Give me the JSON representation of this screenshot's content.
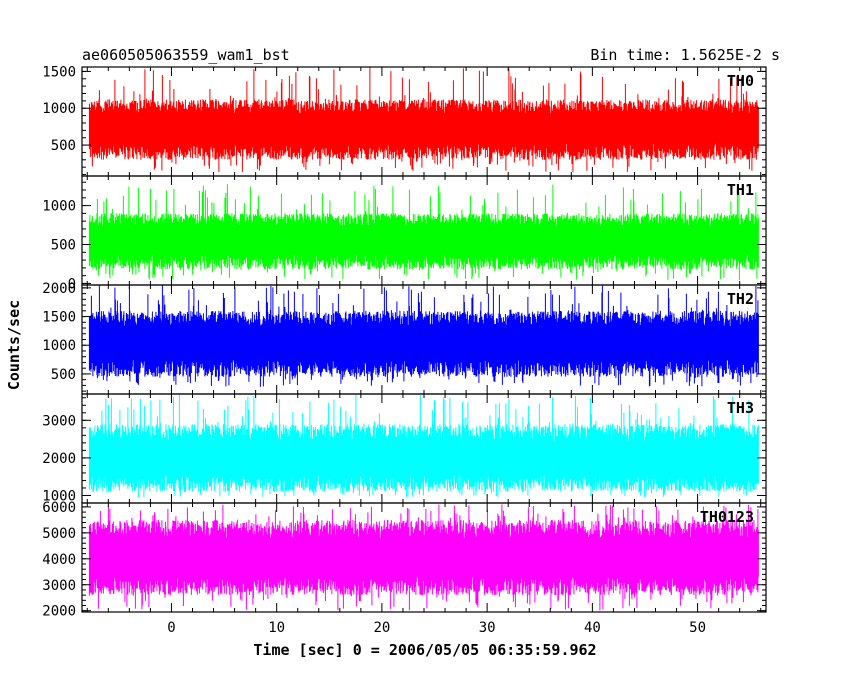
{
  "header": {
    "title": "ae060505063559_wam1_bst",
    "bin_time": "Bin time: 1.5625E-2 s"
  },
  "chart_data": {
    "type": "line",
    "subtype": "multi-panel light curve",
    "xlabel": "Time [sec] 0 = 2006/05/05 06:35:59.962",
    "ylabel": "Counts/sec",
    "xlim": [
      -8.5,
      56.5
    ],
    "data_x_range": [
      -7.8,
      55.8
    ],
    "x_ticks": [
      0,
      10,
      20,
      30,
      40,
      50
    ],
    "x_tick_labels": [
      "0",
      "10",
      "20",
      "30",
      "40",
      "50"
    ],
    "panels": [
      {
        "name": "TH0",
        "color": "#ff0000",
        "ylim": [
          80,
          1560
        ],
        "yticks": [
          500,
          1000,
          1500
        ],
        "ytick_labels": [
          "500",
          "1000",
          "1500"
        ],
        "series_band": {
          "center": 700,
          "p_low": 300,
          "p_high": 1120,
          "spike_min": 130,
          "spike_max": 1560
        }
      },
      {
        "name": "TH1",
        "color": "#00ff00",
        "ylim": [
          -20,
          1380
        ],
        "yticks": [
          0,
          500,
          1000
        ],
        "ytick_labels": [
          "0",
          "500",
          "1000"
        ],
        "series_band": {
          "center": 530,
          "p_low": 180,
          "p_high": 900,
          "spike_min": 40,
          "spike_max": 1280
        }
      },
      {
        "name": "TH2",
        "color": "#0000ff",
        "ylim": [
          150,
          2050
        ],
        "yticks": [
          500,
          1000,
          1500,
          2000
        ],
        "ytick_labels": [
          "500",
          "1000",
          "1500",
          "2000"
        ],
        "series_band": {
          "center": 1000,
          "p_low": 450,
          "p_high": 1600,
          "spike_min": 270,
          "spike_max": 2050
        }
      },
      {
        "name": "TH3",
        "color": "#00ffff",
        "ylim": [
          800,
          3700
        ],
        "yticks": [
          1000,
          2000,
          3000
        ],
        "ytick_labels": [
          "1000",
          "2000",
          "3000"
        ],
        "series_band": {
          "center": 1900,
          "p_low": 1100,
          "p_high": 2900,
          "spike_min": 950,
          "spike_max": 3700
        }
      },
      {
        "name": "TH0123",
        "color": "#ff00ff",
        "ylim": [
          1950,
          6150
        ],
        "yticks": [
          2000,
          3000,
          4000,
          5000,
          6000
        ],
        "ytick_labels": [
          "2000",
          "3000",
          "4000",
          "5000",
          "6000"
        ],
        "series_band": {
          "center": 3900,
          "p_low": 2600,
          "p_high": 5500,
          "spike_min": 2000,
          "spike_max": 6100
        }
      }
    ]
  }
}
